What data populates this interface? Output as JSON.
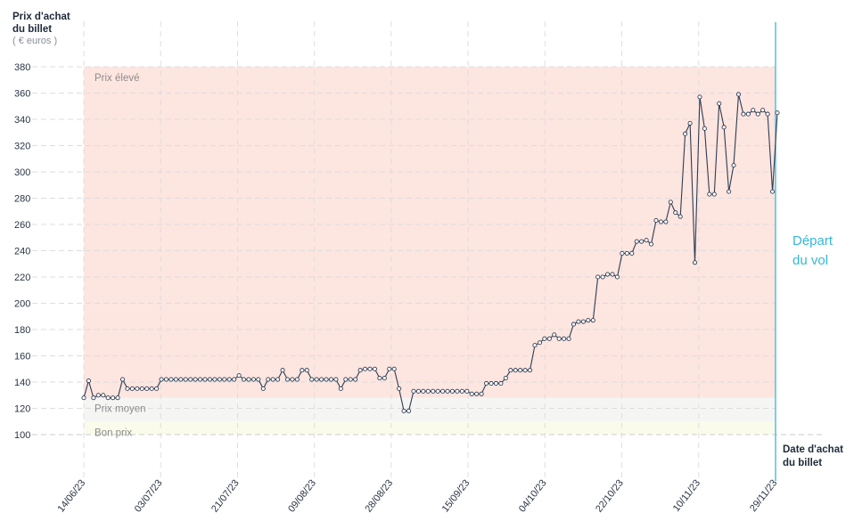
{
  "colors": {
    "high_zone": "#fde5e0",
    "mid_zone": "#f5f5f4",
    "low_zone": "#fafbeb",
    "line": "#2f3c52",
    "departure": "#35b8d8",
    "grid": "#dddddd",
    "text": "#2b3545"
  },
  "chart_data": {
    "type": "line",
    "title": "",
    "ylabel_line1": "Prix d'achat",
    "ylabel_line2": "du billet",
    "ylabel_unit": "( € euros )",
    "xlabel_line1": "Date d'achat",
    "xlabel_line2": "du billet",
    "departure_label_line1": "Départ",
    "departure_label_line2": "du vol",
    "ylim": [
      100,
      380
    ],
    "yticks": [
      100,
      120,
      140,
      160,
      180,
      200,
      220,
      240,
      260,
      280,
      300,
      320,
      340,
      360,
      380
    ],
    "xticks": [
      "14/06/23",
      "03/07/23",
      "21/07/23",
      "09/08/23",
      "28/08/23",
      "15/09/23",
      "04/10/23",
      "22/10/23",
      "10/11/23",
      "29/11/23"
    ],
    "zones": [
      {
        "label": "Prix élevé",
        "from": 128,
        "to": 380
      },
      {
        "label": "Prix moyen",
        "from": 110,
        "to": 128
      },
      {
        "label": "Bon prix",
        "from": 100,
        "to": 110
      }
    ],
    "series": [
      {
        "values": [
          128,
          141,
          128,
          130,
          130,
          128,
          128,
          128,
          142,
          135,
          135,
          135,
          135,
          135,
          135,
          135,
          142,
          142,
          142,
          142,
          142,
          142,
          142,
          142,
          142,
          142,
          142,
          142,
          142,
          142,
          142,
          142,
          145,
          142,
          142,
          142,
          142,
          135,
          142,
          142,
          142,
          149,
          142,
          142,
          142,
          149,
          149,
          142,
          142,
          142,
          142,
          142,
          142,
          135,
          142,
          142,
          142,
          149,
          150,
          150,
          150,
          143,
          143,
          150,
          150,
          135,
          118,
          118,
          133,
          133,
          133,
          133,
          133,
          133,
          133,
          133,
          133,
          133,
          133,
          133,
          131,
          131,
          131,
          139,
          139,
          139,
          139,
          143,
          149,
          149,
          149,
          149,
          149,
          168,
          170,
          173,
          173,
          176,
          173,
          173,
          173,
          184,
          186,
          186,
          187,
          187,
          220,
          220,
          222,
          222,
          220,
          238,
          238,
          238,
          247,
          247,
          248,
          245,
          263,
          262,
          262,
          277,
          269,
          266,
          329,
          337,
          231,
          357,
          333,
          283,
          283,
          352,
          334,
          285,
          305,
          359,
          344,
          344,
          347,
          344,
          347,
          344,
          285,
          345
        ]
      }
    ]
  }
}
